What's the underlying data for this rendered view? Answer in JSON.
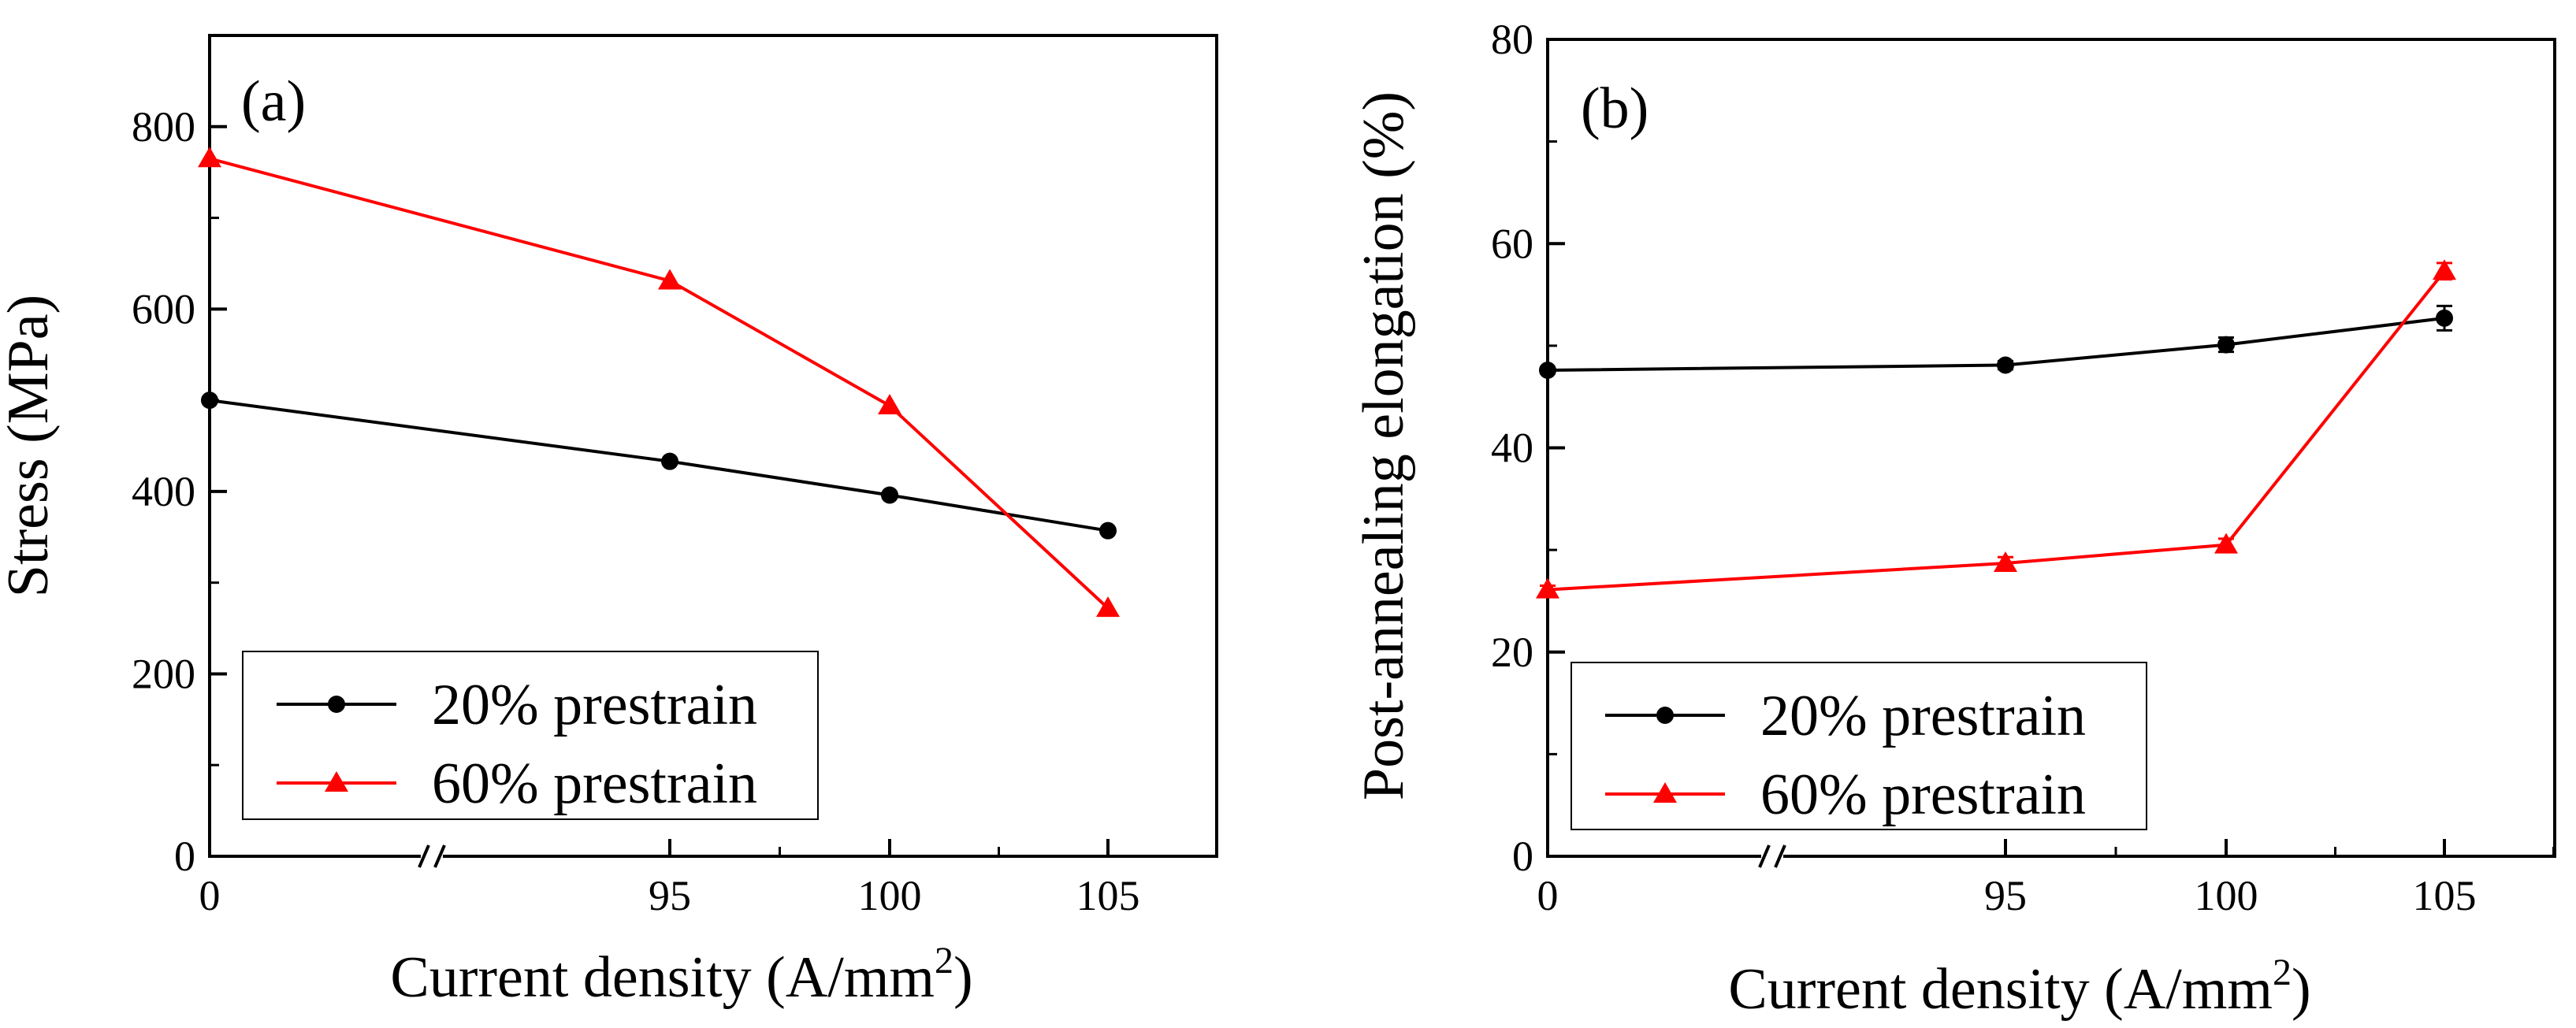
{
  "chart_data": [
    {
      "panel_label": "(a)",
      "type": "line",
      "x_break": true,
      "xticks": [
        0,
        95,
        100,
        105
      ],
      "xtick_labels": [
        "0",
        "95",
        "100",
        "105"
      ],
      "xlim": [
        0,
        108
      ],
      "ylim": [
        0,
        900
      ],
      "yticks": [
        0,
        200,
        400,
        600,
        800
      ],
      "ytick_labels": [
        "0",
        "200",
        "400",
        "600",
        "800"
      ],
      "xlabel": "Current density (A/mm",
      "xlabel_sup": "2",
      "xlabel_end": ")",
      "ylabel": "Stress (MPa)",
      "legend_position": "bottom-left",
      "series": [
        {
          "name": "20% prestrain",
          "color": "#000000",
          "marker": "circle",
          "x": [
            0,
            95,
            100,
            105
          ],
          "y": [
            500,
            433,
            396,
            357
          ]
        },
        {
          "name": "60% prestrain",
          "color": "#ff0000",
          "marker": "triangle",
          "x": [
            0,
            95,
            100,
            105
          ],
          "y": [
            765,
            631,
            494,
            272
          ]
        }
      ]
    },
    {
      "panel_label": "(b)",
      "type": "line",
      "x_break": true,
      "xticks": [
        0,
        95,
        100,
        105
      ],
      "xtick_labels": [
        "0",
        "95",
        "100",
        "105"
      ],
      "xlim": [
        0,
        108
      ],
      "ylim": [
        0,
        80
      ],
      "yticks": [
        0,
        20,
        40,
        60,
        80
      ],
      "ytick_labels": [
        "0",
        "20",
        "40",
        "60",
        "80"
      ],
      "xlabel": "Current density (A/mm",
      "xlabel_sup": "2",
      "xlabel_end": ")",
      "ylabel": "Post-annealing elongation (%)",
      "legend_position": "bottom-left",
      "series": [
        {
          "name": "20% prestrain",
          "color": "#000000",
          "marker": "circle",
          "x": [
            0,
            95,
            100,
            105
          ],
          "y": [
            47.6,
            48.1,
            50.1,
            52.7
          ],
          "err": [
            0.3,
            0.4,
            0.7,
            1.2
          ]
        },
        {
          "name": "60% prestrain",
          "color": "#ff0000",
          "marker": "triangle",
          "x": [
            0,
            95,
            100,
            105
          ],
          "y": [
            26.1,
            28.7,
            30.5,
            57.3
          ],
          "err": [
            0.4,
            0.6,
            0.6,
            0.8
          ]
        }
      ]
    }
  ]
}
